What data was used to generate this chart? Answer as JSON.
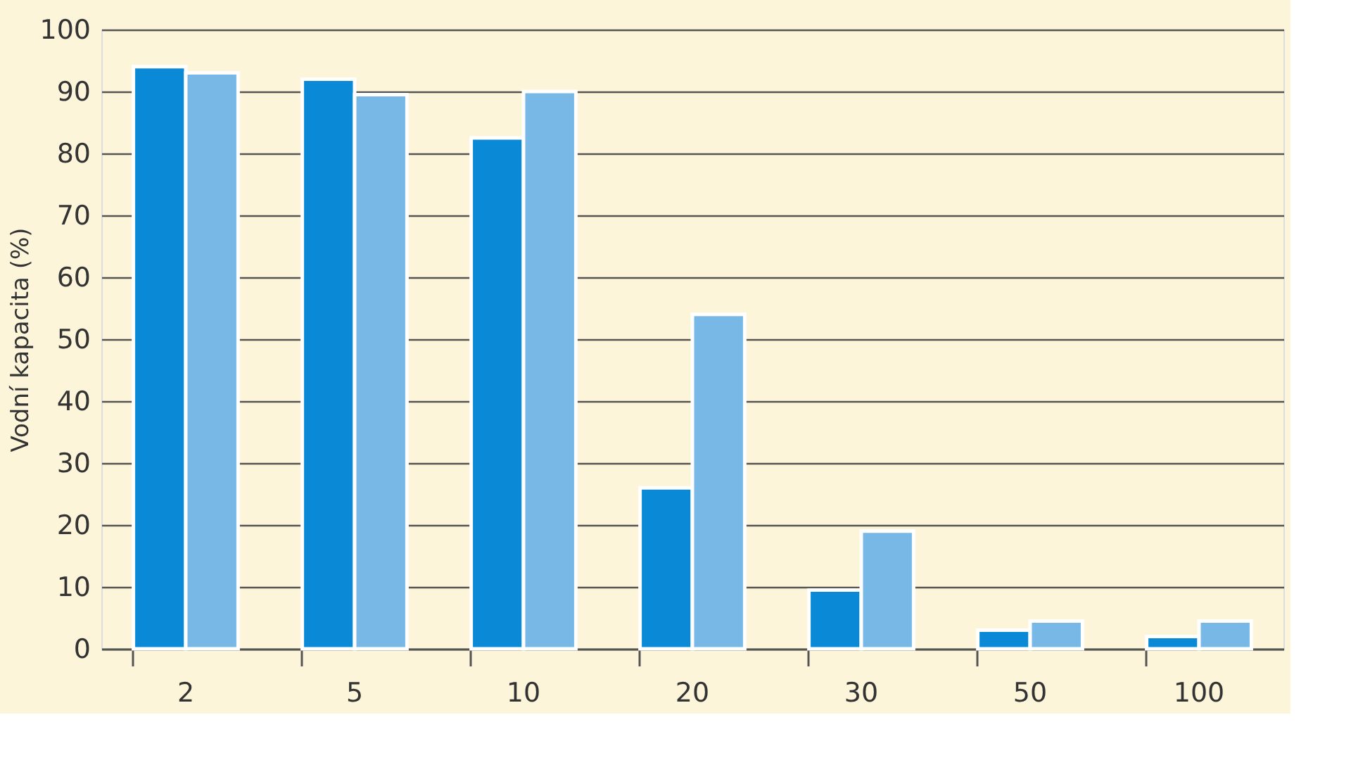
{
  "chart_data": {
    "type": "bar",
    "ylabel": "Vodní kapacita (%)",
    "categories": [
      "2",
      "5",
      "10",
      "20",
      "30",
      "50",
      "100"
    ],
    "series": [
      {
        "color": "#0a8ad6",
        "values": [
          94,
          92,
          82.5,
          26,
          9.5,
          3,
          2
        ]
      },
      {
        "color": "#78b8e6",
        "values": [
          93,
          89.5,
          90,
          54,
          19,
          4.5,
          4.5
        ]
      }
    ],
    "ylim": [
      0,
      100
    ],
    "yticks": [
      0,
      10,
      20,
      30,
      40,
      50,
      60,
      70,
      80,
      90,
      100
    ],
    "grid": "y",
    "legend": false
  }
}
